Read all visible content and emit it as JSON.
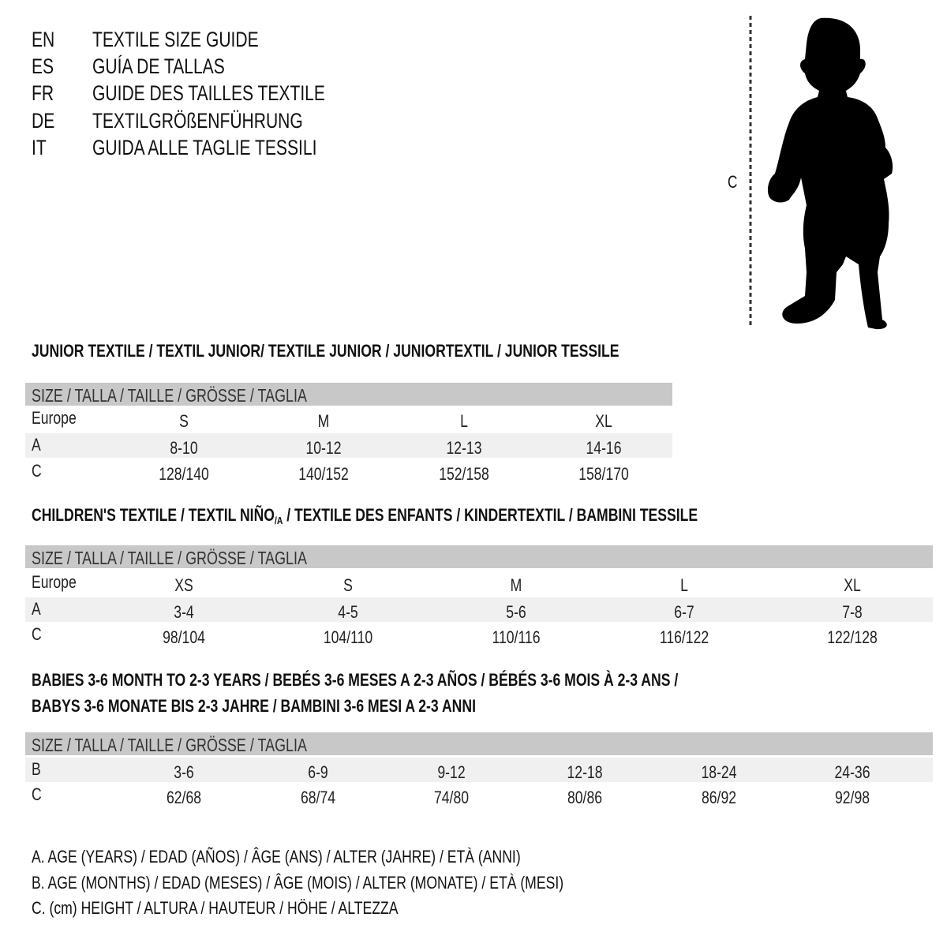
{
  "header": {
    "lines": [
      {
        "code": "EN",
        "text": "TEXTILE SIZE GUIDE"
      },
      {
        "code": "ES",
        "text": "GUÍA DE TALLAS"
      },
      {
        "code": "FR",
        "text": "GUIDE DES TAILLES TEXTILE"
      },
      {
        "code": "DE",
        "text": "TEXTILGRÖßENFÜHRUNG"
      },
      {
        "code": "IT",
        "text": "GUIDA ALLE TAGLIE TESSILI"
      }
    ]
  },
  "figure": {
    "measure_label": "C",
    "icon": "child-silhouette"
  },
  "colors": {
    "header_bar": "#c8c8c8",
    "band": "#f0f0f0"
  },
  "junior": {
    "title": "JUNIOR TEXTILE / TEXTIL JUNIOR/ TEXTILE JUNIOR / JUNIORTEXTIL / JUNIOR TESSILE",
    "size_header": "SIZE / TALLA / TAILLE / GRÖSSE / TAGLIA",
    "rows": [
      {
        "label": "Europe",
        "values": [
          "S",
          "M",
          "L",
          "XL"
        ]
      },
      {
        "label": "A",
        "values": [
          "8-10",
          "10-12",
          "12-13",
          "14-16"
        ]
      },
      {
        "label": "C",
        "values": [
          "128/140",
          "140/152",
          "152/158",
          "158/170"
        ]
      }
    ]
  },
  "children": {
    "title_main": "CHILDREN'S TEXTILE / TEXTIL NIÑO",
    "title_sub": "/A",
    "title_rest": " / TEXTILE DES ENFANTS / KINDERTEXTIL / BAMBINI TESSILE",
    "size_header": "SIZE / TALLA / TAILLE / GRÖSSE / TAGLIA",
    "rows": [
      {
        "label": "Europe",
        "values": [
          "XS",
          "S",
          "M",
          "L",
          "XL"
        ]
      },
      {
        "label": "A",
        "values": [
          "3-4",
          "4-5",
          "5-6",
          "6-7",
          "7-8"
        ]
      },
      {
        "label": "C",
        "values": [
          "98/104",
          "104/110",
          "110/116",
          "116/122",
          "122/128"
        ]
      }
    ]
  },
  "babies": {
    "title_line1": "BABIES 3-6 MONTH TO 2-3 YEARS / BEBÉS 3-6 MESES A 2-3 AÑOS / BÉBÉS 3-6 MOIS À 2-3 ANS /",
    "title_line2": "BABYS 3-6 MONATE BIS 2-3 JAHRE / BAMBINI 3-6 MESI A 2-3 ANNI",
    "size_header": "SIZE / TALLA / TAILLE / GRÖSSE / TAGLIA",
    "rows": [
      {
        "label": "B",
        "values": [
          "3-6",
          "6-9",
          "9-12",
          "12-18",
          "18-24",
          "24-36"
        ]
      },
      {
        "label": "C",
        "values": [
          "62/68",
          "68/74",
          "74/80",
          "80/86",
          "86/92",
          "92/98"
        ]
      }
    ]
  },
  "legend": [
    "A. AGE (YEARS) / EDAD (AÑOS) / ÂGE (ANS) / ALTER (JAHRE) / ETÀ (ANNI)",
    "B. AGE (MONTHS) / EDAD (MESES) / ÂGE (MOIS) / ALTER (MONATE) / ETÀ (MESI)",
    "C. (cm) HEIGHT / ALTURA / HAUTEUR / HÖHE / ALTEZZA"
  ]
}
